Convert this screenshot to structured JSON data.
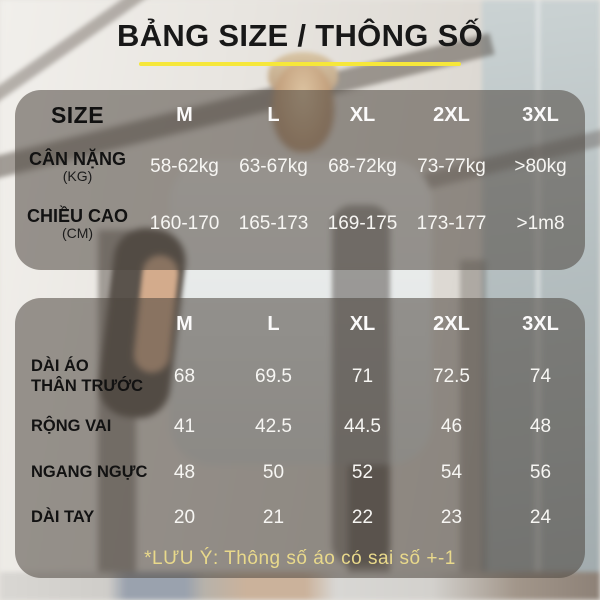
{
  "title": "BẢNG SIZE / THÔNG SỐ",
  "note": "*LƯU Ý: Thông số áo có sai số +-1",
  "colors": {
    "accent_underline": "#f6e73a",
    "note_text": "#e9d98b",
    "panel_overlay": "rgba(77,69,62,0.55)",
    "header_text": "#fbfafa",
    "label_text": "#121212"
  },
  "chart_data": [
    {
      "type": "table",
      "title": "Size guide (weight / height)",
      "corner": "SIZE",
      "columns": [
        "M",
        "L",
        "XL",
        "2XL",
        "3XL"
      ],
      "rows": [
        {
          "label": "CÂN NẶNG",
          "unit": "(KG)",
          "values": [
            "58-62kg",
            "63-67kg",
            "68-72kg",
            "73-77kg",
            ">80kg"
          ]
        },
        {
          "label": "CHIỀU CAO",
          "unit": "(CM)",
          "values": [
            "160-170",
            "165-173",
            "169-175",
            "173-177",
            ">1m8"
          ]
        }
      ]
    },
    {
      "type": "table",
      "title": "Garment measurements (cm)",
      "columns": [
        "M",
        "L",
        "XL",
        "2XL",
        "3XL"
      ],
      "rows": [
        {
          "label": "DÀI ÁO",
          "label2": "THÂN TRƯỚC",
          "values": [
            "68",
            "69.5",
            "71",
            "72.5",
            "74"
          ]
        },
        {
          "label": "RỘNG VAI",
          "values": [
            "41",
            "42.5",
            "44.5",
            "46",
            "48"
          ]
        },
        {
          "label": "NGANG NGỰC",
          "values": [
            "48",
            "50",
            "52",
            "54",
            "56"
          ]
        },
        {
          "label": "DÀI TAY",
          "values": [
            "20",
            "21",
            "22",
            "23",
            "24"
          ]
        }
      ]
    }
  ]
}
